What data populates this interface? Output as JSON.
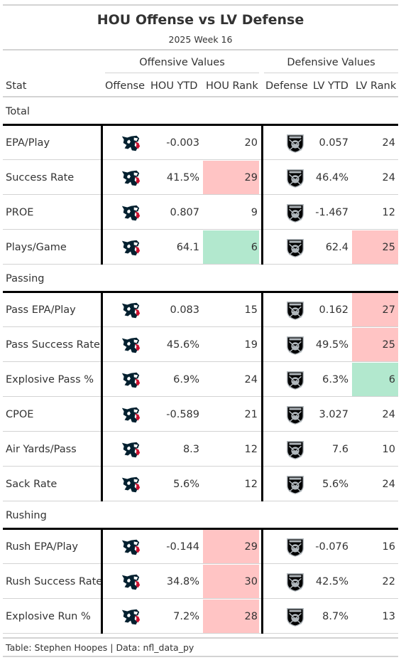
{
  "title": "HOU Offense vs LV Defense",
  "subtitle": "2025 Week 16",
  "spanners": {
    "offense": "Offensive Values",
    "defense": "Defensive Values"
  },
  "columns": {
    "stat": "Stat",
    "offense": "Offense",
    "hou_ytd": "HOU YTD",
    "hou_rank": "HOU Rank",
    "defense": "Defense",
    "lv_ytd": "LV YTD",
    "lv_rank": "LV Rank"
  },
  "colors": {
    "bad": "#ffc4c4",
    "good": "#b2e8ce",
    "texans_navy": "#03202f",
    "texans_red": "#c8102e",
    "raiders_black": "#000000"
  },
  "icons": {
    "offense_logo": "texans-logo-icon",
    "defense_logo": "raiders-logo-icon"
  },
  "groups": [
    {
      "label": "Total",
      "rows": [
        {
          "stat": "EPA/Play",
          "hou_ytd": "-0.003",
          "hou_rank": "20",
          "lv_ytd": "0.057",
          "lv_rank": "24",
          "hou_hl": "",
          "lv_hl": ""
        },
        {
          "stat": "Success Rate",
          "hou_ytd": "41.5%",
          "hou_rank": "29",
          "lv_ytd": "46.4%",
          "lv_rank": "24",
          "hou_hl": "bad",
          "lv_hl": ""
        },
        {
          "stat": "PROE",
          "hou_ytd": "0.807",
          "hou_rank": "9",
          "lv_ytd": "-1.467",
          "lv_rank": "12",
          "hou_hl": "",
          "lv_hl": ""
        },
        {
          "stat": "Plays/Game",
          "hou_ytd": "64.1",
          "hou_rank": "6",
          "lv_ytd": "62.4",
          "lv_rank": "25",
          "hou_hl": "good",
          "lv_hl": "bad"
        }
      ]
    },
    {
      "label": "Passing",
      "rows": [
        {
          "stat": "Pass EPA/Play",
          "hou_ytd": "0.083",
          "hou_rank": "15",
          "lv_ytd": "0.162",
          "lv_rank": "27",
          "hou_hl": "",
          "lv_hl": "bad"
        },
        {
          "stat": "Pass Success Rate",
          "hou_ytd": "45.6%",
          "hou_rank": "19",
          "lv_ytd": "49.5%",
          "lv_rank": "25",
          "hou_hl": "",
          "lv_hl": "bad"
        },
        {
          "stat": "Explosive Pass %",
          "hou_ytd": "6.9%",
          "hou_rank": "24",
          "lv_ytd": "6.3%",
          "lv_rank": "6",
          "hou_hl": "",
          "lv_hl": "good"
        },
        {
          "stat": "CPOE",
          "hou_ytd": "-0.589",
          "hou_rank": "21",
          "lv_ytd": "3.027",
          "lv_rank": "24",
          "hou_hl": "",
          "lv_hl": ""
        },
        {
          "stat": "Air Yards/Pass",
          "hou_ytd": "8.3",
          "hou_rank": "12",
          "lv_ytd": "7.6",
          "lv_rank": "10",
          "hou_hl": "",
          "lv_hl": ""
        },
        {
          "stat": "Sack Rate",
          "hou_ytd": "5.6%",
          "hou_rank": "12",
          "lv_ytd": "5.6%",
          "lv_rank": "24",
          "hou_hl": "",
          "lv_hl": ""
        }
      ]
    },
    {
      "label": "Rushing",
      "rows": [
        {
          "stat": "Rush EPA/Play",
          "hou_ytd": "-0.144",
          "hou_rank": "29",
          "lv_ytd": "-0.076",
          "lv_rank": "16",
          "hou_hl": "bad",
          "lv_hl": ""
        },
        {
          "stat": "Rush Success Rate",
          "hou_ytd": "34.8%",
          "hou_rank": "30",
          "lv_ytd": "42.5%",
          "lv_rank": "22",
          "hou_hl": "bad",
          "lv_hl": ""
        },
        {
          "stat": "Explosive Run %",
          "hou_ytd": "7.2%",
          "hou_rank": "28",
          "lv_ytd": "8.7%",
          "lv_rank": "13",
          "hou_hl": "bad",
          "lv_hl": ""
        }
      ]
    }
  ],
  "source_note": "Table: Stephen Hoopes | Data: nfl_data_py"
}
